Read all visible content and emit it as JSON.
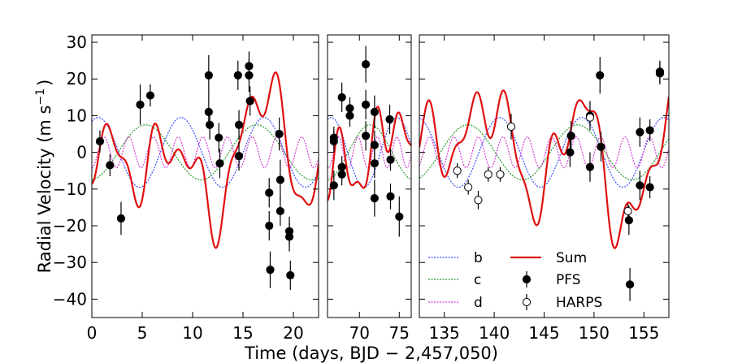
{
  "chart_data": {
    "type": "line",
    "xlabel": "Time (days, BJD − 2,457,050)",
    "ylabel": "Radial Velocity (m s",
    "ylabel_exp": "−1",
    "ylabel_close": ")",
    "ylim": [
      -45,
      32
    ],
    "yticks": [
      30,
      20,
      10,
      0,
      -10,
      -20,
      -30,
      -40
    ],
    "ytick_labels": [
      "30",
      "20",
      "10",
      "0",
      "−10",
      "−20",
      "−30",
      "−40"
    ],
    "colors": {
      "b": "#3b4cff",
      "c": "#2a9a2a",
      "d": "#d23cd2",
      "sum": "#e01010",
      "pfs": "#000000",
      "harps": "#ffffff"
    },
    "panels": [
      {
        "name": "panel-1",
        "xlim": [
          0,
          22.5
        ],
        "xticks": [
          0,
          5,
          10,
          15,
          20
        ],
        "xtick_labels": [
          "0",
          "5",
          "10",
          "15",
          "20"
        ]
      },
      {
        "name": "panel-2",
        "xlim": [
          66,
          76.5
        ],
        "xticks": [
          70,
          75
        ],
        "xtick_labels": [
          "70",
          "75"
        ]
      },
      {
        "name": "panel-3",
        "xlim": [
          132.5,
          157.5
        ],
        "xticks": [
          135,
          140,
          145,
          150,
          155
        ],
        "xtick_labels": [
          "135",
          "140",
          "145",
          "150",
          "155"
        ]
      }
    ],
    "models": {
      "b": {
        "amplitude": 9.5,
        "period": 8.23,
        "phase_time": 6.8
      },
      "c": {
        "amplitude": 7.5,
        "period": 11.0,
        "phase_time": 2.6
      },
      "d": {
        "amplitude": 4.2,
        "period": 2.45,
        "phase_time": 0.6
      },
      "sum_extra": [
        {
          "amplitude": 6.0,
          "period": 4.1,
          "phase_time": 1.2
        },
        {
          "amplitude": 5.0,
          "period": 29.0,
          "phase_time": 15.0
        }
      ]
    },
    "series": [
      {
        "name": "PFS",
        "points": [
          [
            0.8,
            3,
            3
          ],
          [
            1.8,
            -3.5,
            3
          ],
          [
            2.9,
            -18,
            4.5
          ],
          [
            4.8,
            13,
            5.5
          ],
          [
            5.8,
            15.5,
            3
          ],
          [
            11.6,
            21,
            5.5
          ],
          [
            11.6,
            11,
            4.5
          ],
          [
            11.7,
            7.5,
            4
          ],
          [
            12.6,
            4,
            4
          ],
          [
            12.7,
            -3,
            4
          ],
          [
            14.5,
            21,
            4
          ],
          [
            14.6,
            7.5,
            4
          ],
          [
            14.6,
            -1,
            4
          ],
          [
            15.6,
            23.5,
            4
          ],
          [
            15.6,
            21,
            4.5
          ],
          [
            15.7,
            14,
            4
          ],
          [
            17.6,
            -11,
            4
          ],
          [
            17.6,
            -20,
            4
          ],
          [
            17.7,
            -32,
            5
          ],
          [
            18.6,
            5,
            4.5
          ],
          [
            18.7,
            -7.5,
            5.5
          ],
          [
            18.7,
            -16,
            4
          ],
          [
            19.6,
            -21.5,
            4
          ],
          [
            19.6,
            -23,
            4
          ],
          [
            19.7,
            -33.5,
            4
          ],
          [
            66.8,
            4,
            3
          ],
          [
            66.8,
            3,
            3
          ],
          [
            66.8,
            -9,
            4
          ],
          [
            67.8,
            15,
            4
          ],
          [
            67.8,
            -4,
            3
          ],
          [
            67.8,
            -6,
            3
          ],
          [
            68.8,
            12,
            3
          ],
          [
            68.8,
            10,
            3
          ],
          [
            70.8,
            24,
            5
          ],
          [
            70.8,
            13,
            4
          ],
          [
            70.8,
            4.5,
            4
          ],
          [
            71.9,
            11,
            4.5
          ],
          [
            71.9,
            2,
            4
          ],
          [
            71.9,
            -3,
            4
          ],
          [
            71.9,
            -12.5,
            5
          ],
          [
            73.8,
            9,
            4
          ],
          [
            73.9,
            -2,
            3
          ],
          [
            73.9,
            -12,
            3.5
          ],
          [
            75.0,
            -17.5,
            5.5
          ],
          [
            147.6,
            0,
            4
          ],
          [
            147.7,
            4.5,
            4
          ],
          [
            149.6,
            10,
            4
          ],
          [
            149.6,
            -4,
            4
          ],
          [
            150.6,
            21,
            5
          ],
          [
            150.7,
            1.5,
            4
          ],
          [
            153.5,
            -18.5,
            4
          ],
          [
            153.6,
            -36,
            4.5
          ],
          [
            154.6,
            5.5,
            4
          ],
          [
            154.6,
            -9,
            4
          ],
          [
            155.6,
            6,
            3
          ],
          [
            155.6,
            -9.5,
            3
          ],
          [
            156.6,
            22,
            3
          ],
          [
            156.6,
            21.5,
            3
          ]
        ]
      },
      {
        "name": "HARPS",
        "points": [
          [
            136.3,
            -5,
            2
          ],
          [
            137.4,
            -9.5,
            2
          ],
          [
            138.4,
            -13,
            2.5
          ],
          [
            139.4,
            -6,
            2
          ],
          [
            140.6,
            -6,
            2
          ],
          [
            141.7,
            7,
            3.5
          ],
          [
            149.6,
            9.5,
            2
          ],
          [
            153.4,
            -16,
            2
          ]
        ]
      }
    ],
    "legend": {
      "placement": "lower-right",
      "entries": [
        {
          "key": "b",
          "label": "b",
          "style": "dashed"
        },
        {
          "key": "c",
          "label": "c",
          "style": "dashed"
        },
        {
          "key": "d",
          "label": "d",
          "style": "dashed"
        },
        {
          "key": "sum",
          "label": "Sum",
          "style": "line"
        },
        {
          "key": "pfs",
          "label": "PFS",
          "style": "filled-marker"
        },
        {
          "key": "harps",
          "label": "HARPS",
          "style": "open-marker"
        }
      ]
    }
  }
}
